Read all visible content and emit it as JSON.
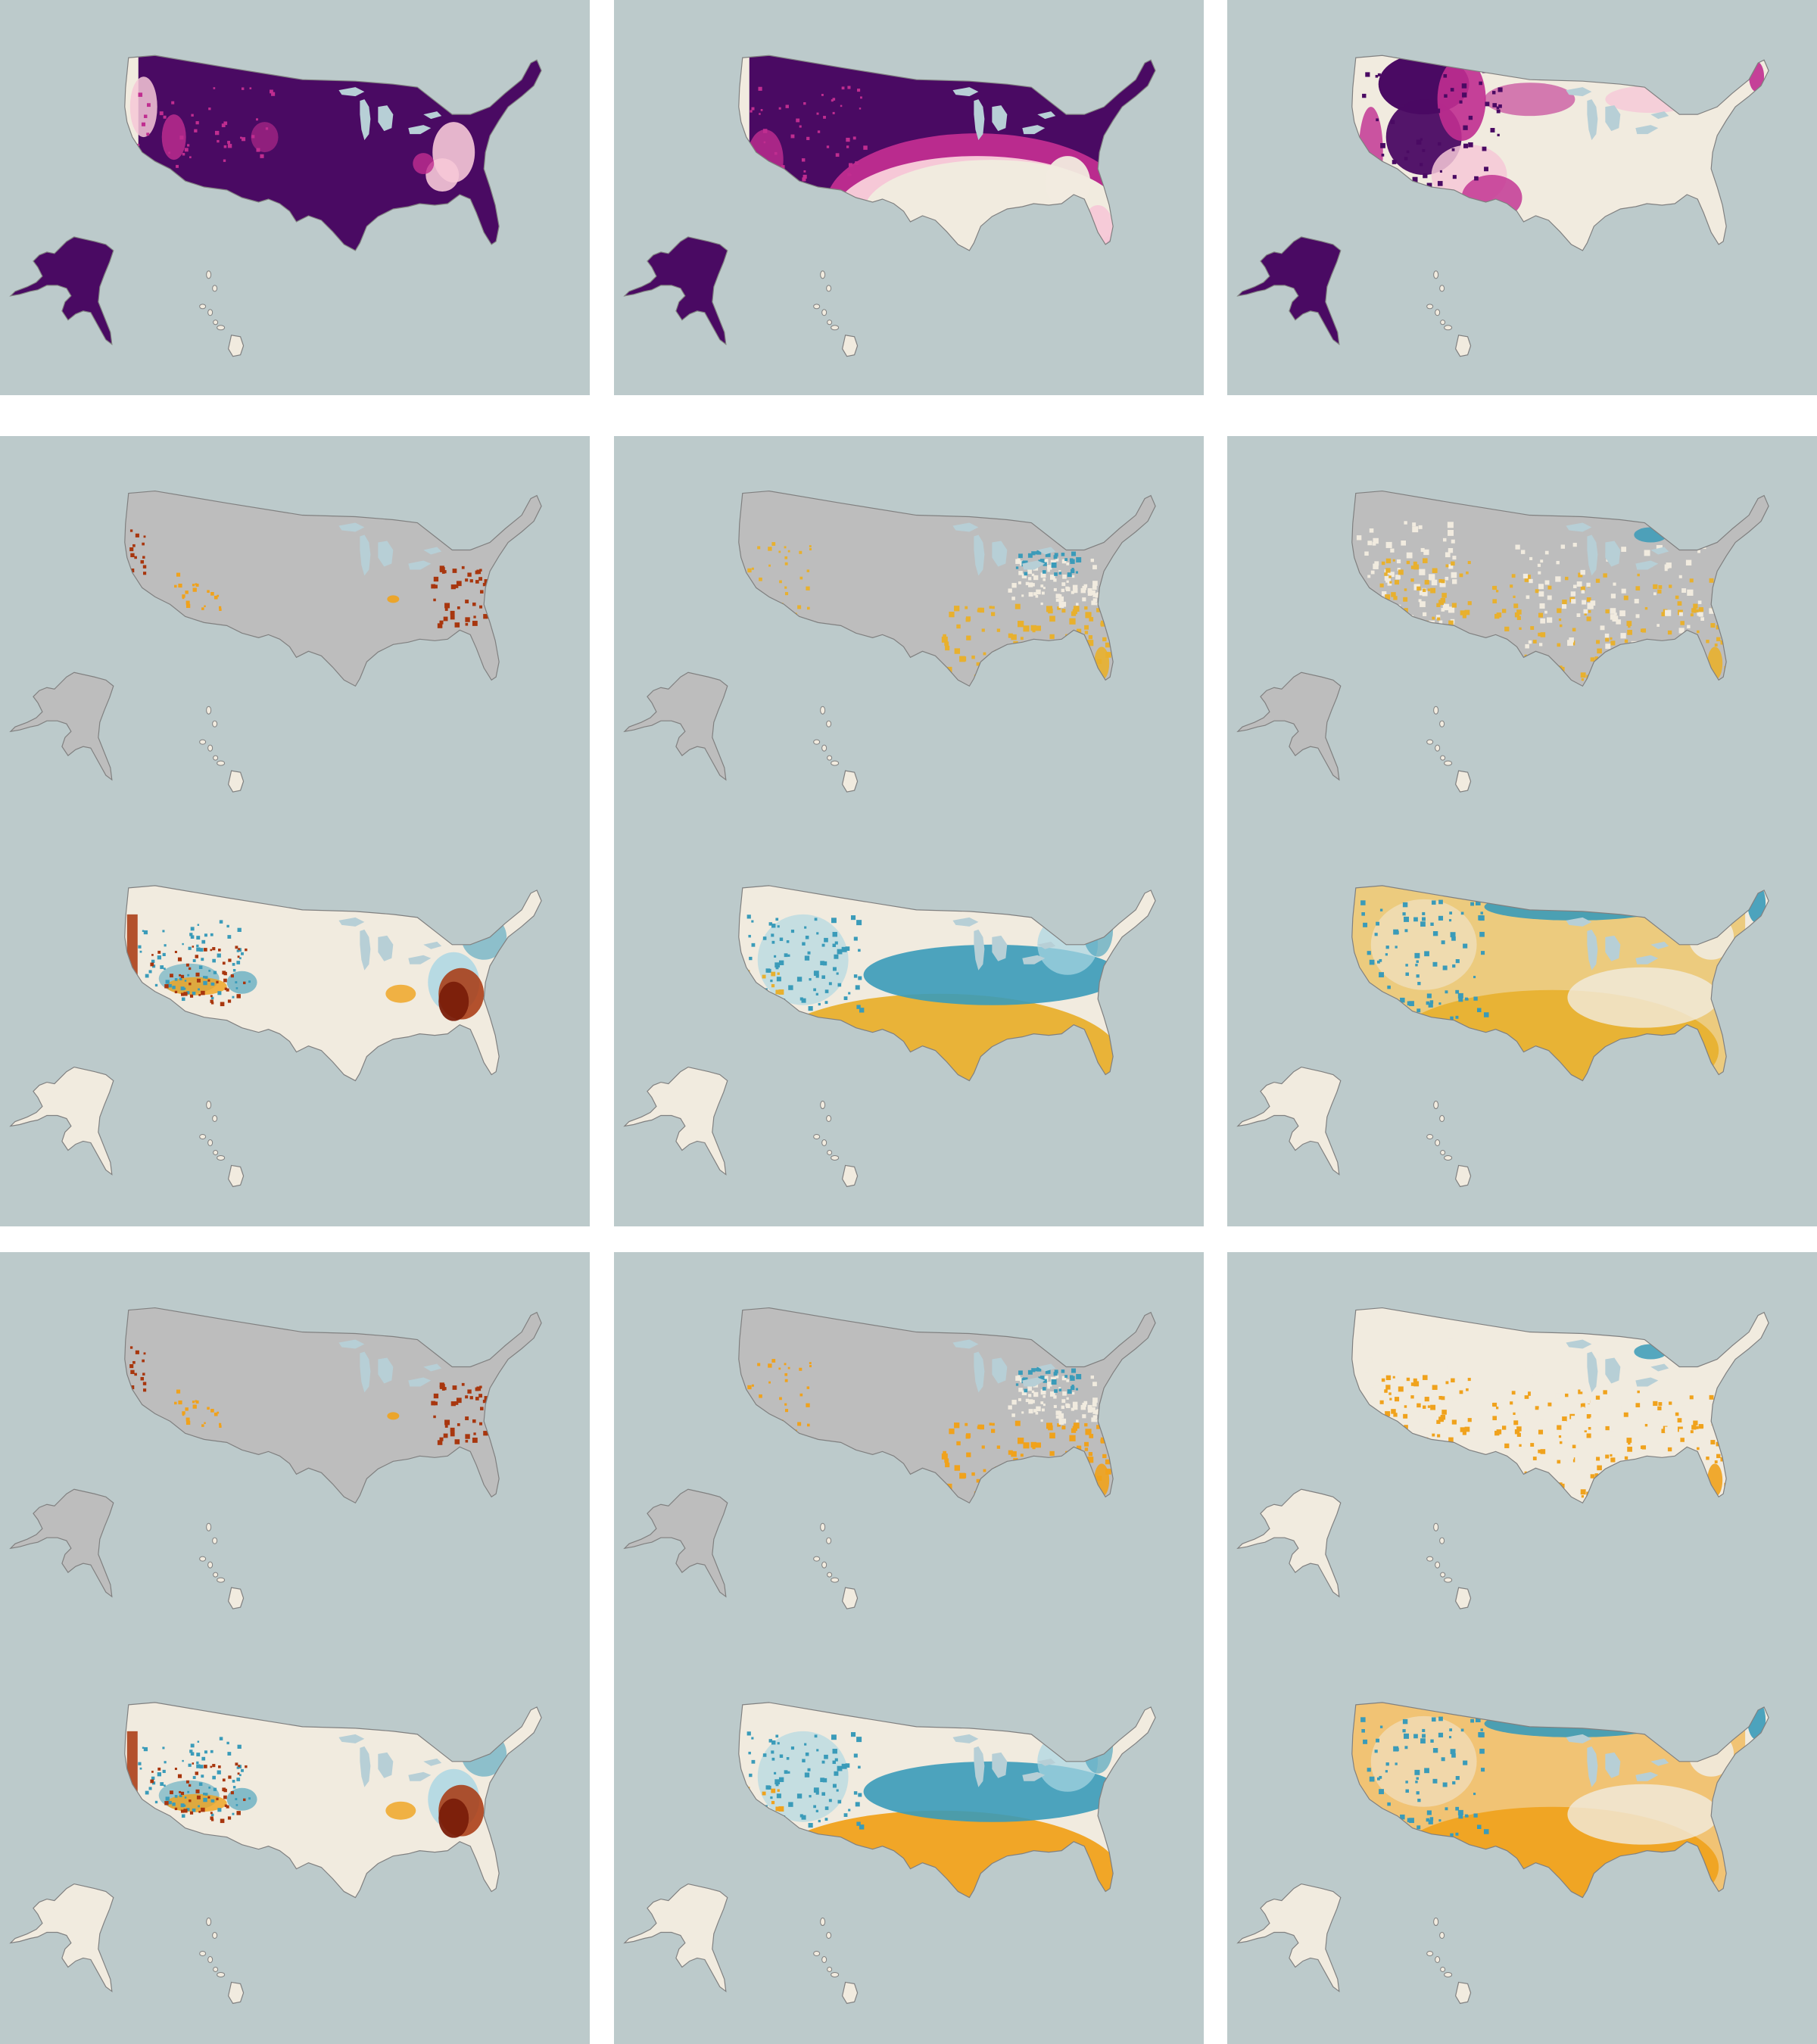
{
  "figure": {
    "colors": {
      "panel_background": "#bccacb",
      "land_outline": "#808080",
      "land_cream": "#f1ebdf",
      "land_gray": "#bdbdbd",
      "lake_water": "#b7cfd6",
      "purple_dark": "#4a0a63",
      "magenta": "#c02d90",
      "pink_light": "#f6c8d7",
      "blue": "#3a9bb9",
      "blue_light": "#a9d6e3",
      "gold": "#e8b02e",
      "orange": "#f0a21c",
      "rust": "#a8360e",
      "dark_red": "#7a1e0a"
    },
    "panels": [
      {
        "id": "r1c1",
        "style": "purple-full",
        "maps": 1
      },
      {
        "id": "r1c2",
        "style": "purple-north",
        "maps": 1
      },
      {
        "id": "r1c3",
        "style": "purple-west",
        "maps": 1
      },
      {
        "id": "r2c1",
        "style": "appalachian-rust",
        "maps": 2
      },
      {
        "id": "r2c2",
        "style": "blue-north-gold-south",
        "maps": 2
      },
      {
        "id": "r2c3",
        "style": "blue-border-gold-south",
        "maps": 2
      },
      {
        "id": "r3c1",
        "style": "appalachian-rust",
        "maps": 2
      },
      {
        "id": "r3c2",
        "style": "blue-north-orange-south",
        "maps": 2
      },
      {
        "id": "r3c3",
        "style": "blue-border-orange-south",
        "maps": 2
      }
    ]
  }
}
